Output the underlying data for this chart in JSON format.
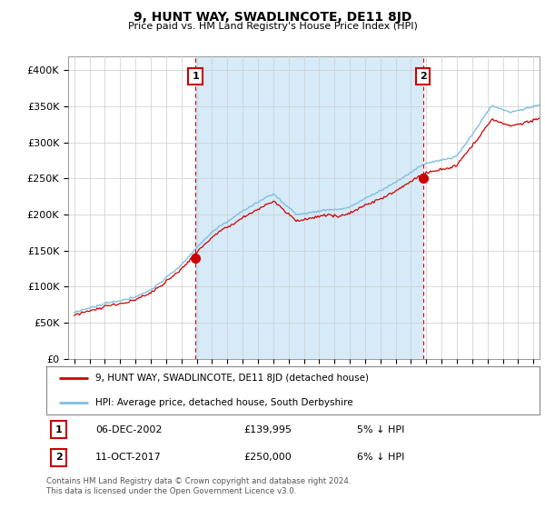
{
  "title": "9, HUNT WAY, SWADLINCOTE, DE11 8JD",
  "subtitle": "Price paid vs. HM Land Registry's House Price Index (HPI)",
  "ylabel_ticks": [
    "£0",
    "£50K",
    "£100K",
    "£150K",
    "£200K",
    "£250K",
    "£300K",
    "£350K",
    "£400K"
  ],
  "ytick_values": [
    0,
    50000,
    100000,
    150000,
    200000,
    250000,
    300000,
    350000,
    400000
  ],
  "ylim": [
    0,
    420000
  ],
  "xlim_start": 1994.6,
  "xlim_end": 2025.4,
  "hpi_color": "#7fbfdf",
  "hpi_fill_color": "#d6eaf8",
  "price_color": "#cc0000",
  "vline_color": "#cc0000",
  "annotation_box_edgecolor": "#cc0000",
  "annotation_box_facecolor": "#ffffff",
  "sale1_x": 2002.92,
  "sale1_y": 139995,
  "sale1_label": "1",
  "sale1_date": "06-DEC-2002",
  "sale1_price": "£139,995",
  "sale1_hpi": "5% ↓ HPI",
  "sale2_x": 2017.78,
  "sale2_y": 250000,
  "sale2_label": "2",
  "sale2_date": "11-OCT-2017",
  "sale2_price": "£250,000",
  "sale2_hpi": "6% ↓ HPI",
  "legend_label_price": "9, HUNT WAY, SWADLINCOTE, DE11 8JD (detached house)",
  "legend_label_hpi": "HPI: Average price, detached house, South Derbyshire",
  "footer": "Contains HM Land Registry data © Crown copyright and database right 2024.\nThis data is licensed under the Open Government Licence v3.0.",
  "background_color": "#ffffff",
  "grid_color": "#cccccc"
}
